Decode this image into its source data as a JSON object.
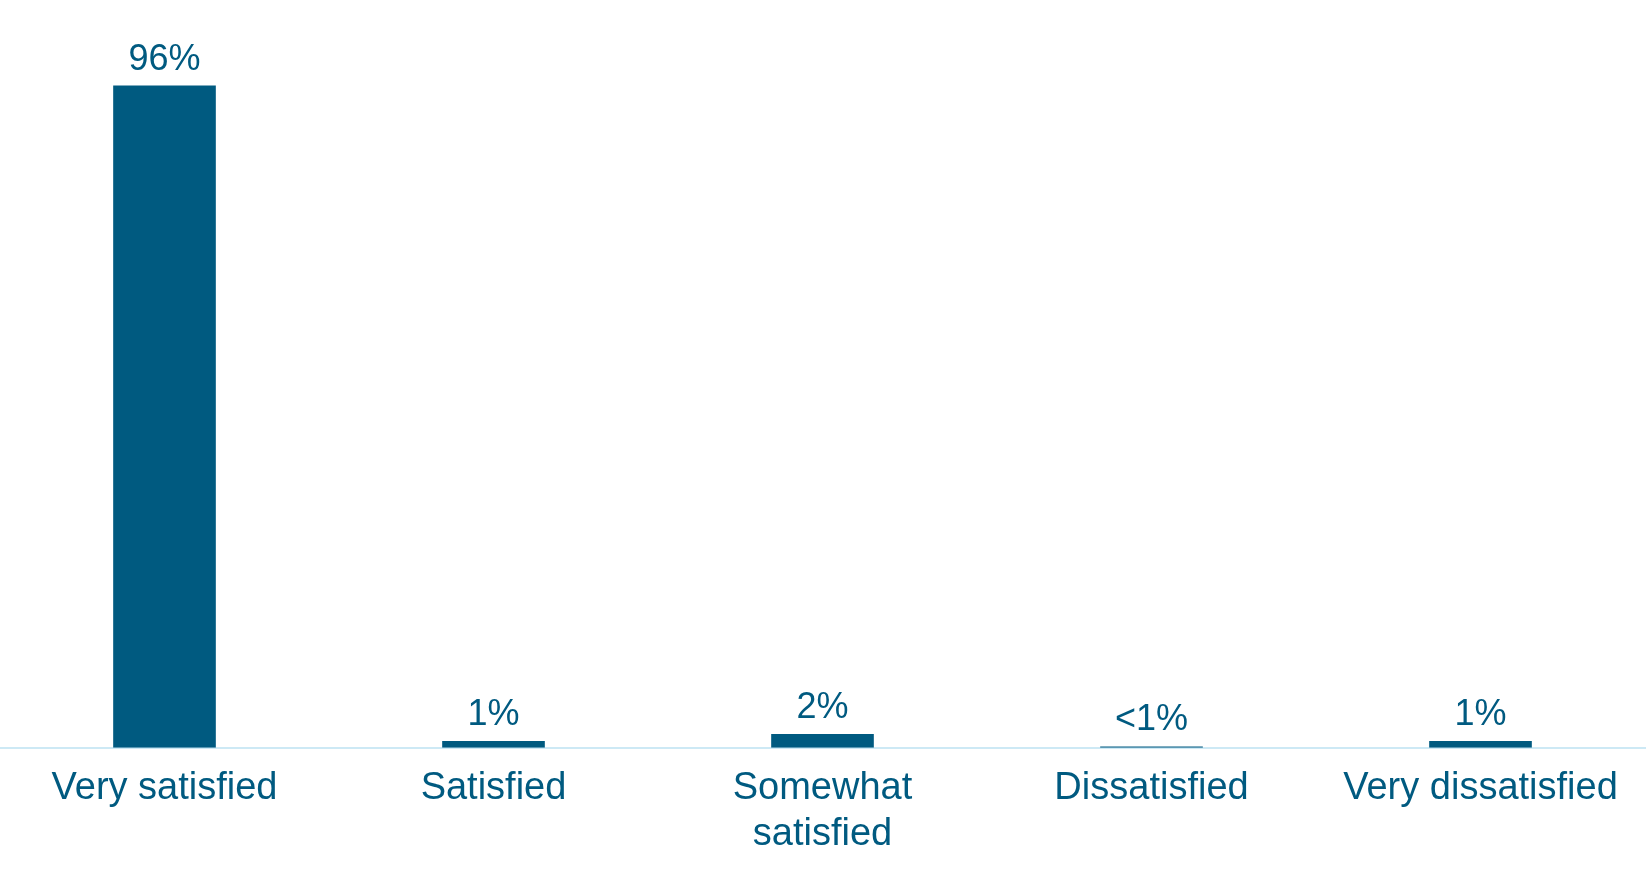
{
  "chart_data": {
    "type": "bar",
    "categories": [
      "Very satisfied",
      "Satisfied",
      "Somewhat satisfied",
      "Dissatisfied",
      "Very dissatisfied"
    ],
    "values": [
      96,
      1,
      2,
      0.2,
      1
    ],
    "value_labels": [
      "96%",
      "1%",
      "2%",
      "<1%",
      "1%"
    ],
    "color": "#005a80",
    "grid": false,
    "legend": false
  }
}
